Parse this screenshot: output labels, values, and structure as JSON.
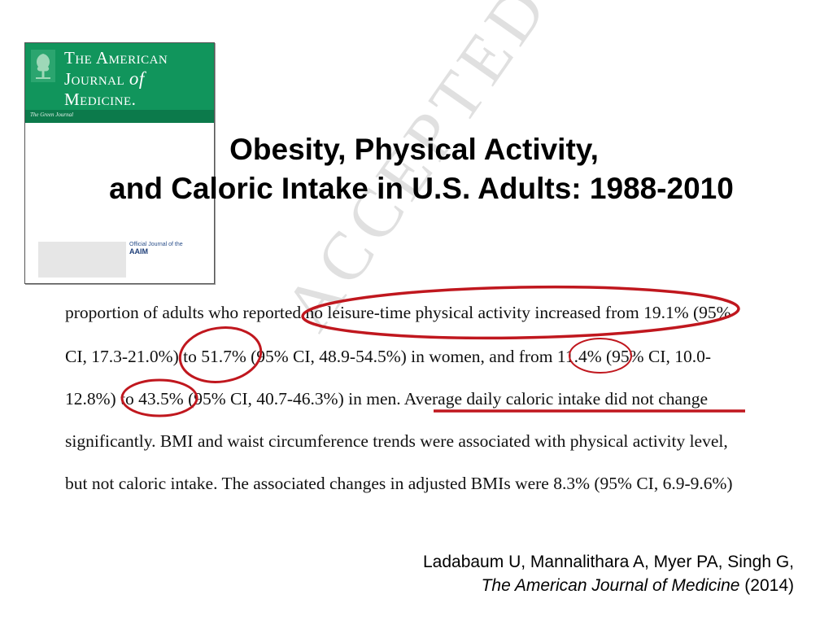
{
  "cover": {
    "title_line1": "The American",
    "title_line2_a": "Journal",
    "title_line2_b": "of",
    "title_line3": "Medicine.",
    "tagline": "The Green Journal",
    "aaim_small": "Official Journal of the",
    "aaim_logo": "AAIM",
    "brand_color": "#11955c",
    "icon": "elsevier-tree-logo"
  },
  "title": {
    "line1": "Obesity, Physical Activity,",
    "line2": "and Caloric Intake in U.S. Adults: 1988-2010"
  },
  "excerpt": {
    "lines": [
      "proportion of adults who reported no leisure-time physical activity increased from 19.1% (95%",
      "CI, 17.3-21.0%) to 51.7% (95% CI, 48.9-54.5%) in women, and from 11.4% (95% CI, 10.0-",
      "12.8%) to 43.5% (95% CI, 40.7-46.3%) in men.  Average daily caloric intake did not change",
      "significantly.  BMI and waist circumference trends were associated with physical activity level,",
      "but not caloric intake.  The associated changes in adjusted BMIs were 8.3% (95% CI, 6.9-9.6%)"
    ],
    "watermark": "ACCEPTED MANUSCRIPT",
    "annotation_color": "#c0171e"
  },
  "citation": {
    "authors": "Ladabaum U, Mannalithara A, Myer PA, Singh G,",
    "journal": "The American Journal of Medicine",
    "year": " (2014)"
  }
}
